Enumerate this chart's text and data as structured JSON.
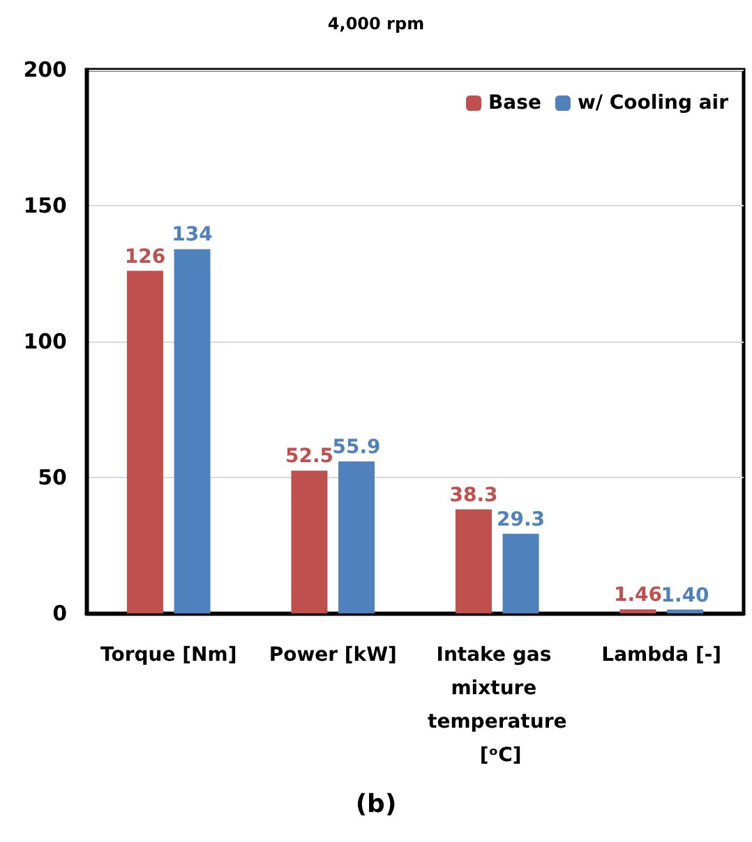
{
  "chart_data": {
    "type": "bar",
    "title": "4,000 rpm",
    "categories": [
      "Torque [Nm]",
      "Power [kW]",
      "Intake gas mixture temperature [ᵒC]",
      "Lambda [-]"
    ],
    "series": [
      {
        "name": "Base",
        "color": "#c0504d",
        "values": [
          126,
          52.5,
          38.3,
          1.46
        ],
        "value_labels": [
          "126",
          "52.5",
          "38.3",
          "1.46"
        ]
      },
      {
        "name": "w/ Cooling air",
        "color": "#4f81bd",
        "values": [
          134,
          55.9,
          29.3,
          1.4
        ],
        "value_labels": [
          "134",
          "55.9",
          "29.3",
          "1.40"
        ]
      }
    ],
    "ylim": [
      0,
      200
    ],
    "yticks": [
      0,
      50,
      100,
      150,
      200
    ],
    "grid": "y",
    "legend": "top right",
    "annotations": [
      "(b)"
    ]
  }
}
